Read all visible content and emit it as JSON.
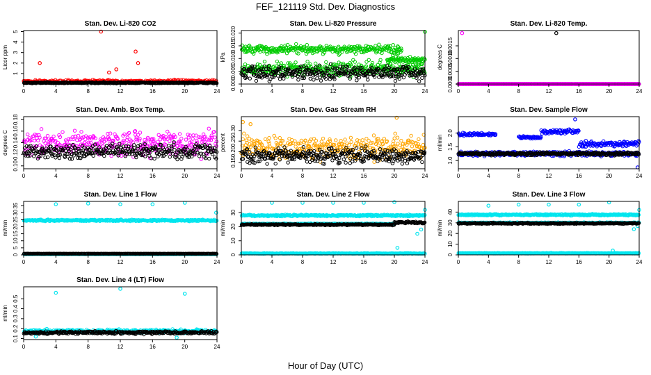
{
  "figure": {
    "title": "FEF_121119  Std. Dev. Diagnostics",
    "xlabel": "Hour of Day (UTC)"
  },
  "chart_data": [
    {
      "type": "scatter",
      "title": "Stan. Dev. Li-820 CO2",
      "ylabel": "Licor ppm",
      "xlim": [
        0,
        24
      ],
      "xticks": [
        0,
        4,
        8,
        12,
        16,
        20,
        24
      ],
      "ylim": [
        0,
        5.1
      ],
      "yticks": [
        1,
        2,
        3,
        4,
        5
      ],
      "ytick_labels": [
        "1",
        "2",
        "3",
        "4",
        "5"
      ],
      "series": [
        {
          "color": "#ff0000",
          "base": 0.25,
          "spread": 0.2,
          "outliers": [
            [
              9.6,
              5.0
            ],
            [
              13.9,
              3.1
            ],
            [
              2.0,
              2.0
            ],
            [
              14.2,
              2.0
            ],
            [
              10.6,
              1.1
            ],
            [
              11.5,
              1.4
            ]
          ]
        },
        {
          "color": "#000000",
          "base": 0.12,
          "spread": 0.08,
          "outliers": []
        }
      ]
    },
    {
      "type": "scatter",
      "title": "Stan. Dev. Li-820 Pressure",
      "ylabel": "kPa",
      "xlim": [
        0,
        24
      ],
      "xticks": [
        0,
        4,
        8,
        12,
        16,
        20,
        24
      ],
      "ylim": [
        0,
        0.021
      ],
      "yticks": [
        0,
        0.005,
        0.01,
        0.015,
        0.02
      ],
      "ytick_labels": [
        "0.000",
        "0.005",
        "0.010",
        "0.015",
        "0.020"
      ],
      "series": [
        {
          "color": "#00cc00",
          "bands": [
            [
              0.0135,
              0.0025,
              0,
              21
            ],
            [
              0.006,
              0.004,
              0,
              24
            ],
            [
              0.0095,
              0.0015,
              19,
              24
            ]
          ],
          "outliers": [
            [
              24.0,
              0.0205
            ],
            [
              16.4,
              0.013
            ],
            [
              19.2,
              0.015
            ],
            [
              20.5,
              0.012
            ]
          ]
        },
        {
          "color": "#000000",
          "bands": [
            [
              0.0045,
              0.004,
              0,
              24
            ]
          ],
          "outliers": []
        }
      ]
    },
    {
      "type": "scatter",
      "title": "Stan. Dev. Li-820 Temp.",
      "ylabel": "degrees C",
      "xlim": [
        0,
        24
      ],
      "xticks": [
        0,
        4,
        8,
        12,
        16,
        20,
        24
      ],
      "ylim": [
        0,
        0.0021
      ],
      "yticks": [
        0,
        0.0005,
        0.001,
        0.0015
      ],
      "ytick_labels": [
        "0.0000",
        "0.0005",
        "0.0010",
        "0.0015"
      ],
      "series": [
        {
          "color": "#000000",
          "base": 0.0,
          "spread": 0.0,
          "outliers": [
            [
              13.0,
              0.002
            ]
          ]
        },
        {
          "color": "#ff00ff",
          "base": 0.0,
          "spread": 0.0,
          "outliers": [
            [
              0.5,
              0.002
            ]
          ]
        }
      ]
    },
    {
      "type": "scatter",
      "title": "Stan. Dev. Amb. Box Temp.",
      "ylabel": "degrees C",
      "xlim": [
        0,
        24
      ],
      "xticks": [
        0,
        4,
        8,
        12,
        16,
        20,
        24
      ],
      "ylim": [
        0.095,
        0.185
      ],
      "yticks": [
        0.1,
        0.12,
        0.14,
        0.16,
        0.18
      ],
      "ytick_labels": [
        "0.10",
        "0.12",
        "0.14",
        "0.16",
        "0.18"
      ],
      "series": [
        {
          "color": "#ff00ff",
          "base": 0.14,
          "spread": 0.03,
          "outliers": []
        },
        {
          "color": "#000000",
          "base": 0.125,
          "spread": 0.018,
          "outliers": []
        }
      ]
    },
    {
      "type": "scatter",
      "title": "Stan. Dev. Gas Stream RH",
      "ylabel": "percent",
      "xlim": [
        0,
        24
      ],
      "xticks": [
        0,
        4,
        8,
        12,
        16,
        20,
        24
      ],
      "ylim": [
        0.12,
        0.365
      ],
      "yticks": [
        0.15,
        0.2,
        0.25,
        0.3
      ],
      "ytick_labels": [
        "0.15",
        "0.20",
        "0.25",
        "0.30"
      ],
      "series": [
        {
          "color": "#ffa500",
          "base": 0.22,
          "spread": 0.08,
          "outliers": [
            [
              20.3,
              0.36
            ],
            [
              0.2,
              0.34
            ],
            [
              1.2,
              0.33
            ]
          ]
        },
        {
          "color": "#000000",
          "base": 0.18,
          "spread": 0.05,
          "outliers": []
        }
      ]
    },
    {
      "type": "scatter",
      "title": "Stan. Dev. Sample Flow",
      "ylabel": "ml/min",
      "xlim": [
        0,
        24
      ],
      "xticks": [
        0,
        4,
        8,
        12,
        16,
        20,
        24
      ],
      "ylim": [
        0.7,
        2.6
      ],
      "yticks": [
        1.0,
        1.5,
        2.0
      ],
      "ytick_labels": [
        "1.0",
        "1.5",
        "2.0"
      ],
      "series": [
        {
          "color": "#0000ff",
          "bands": [
            [
              1.25,
              0.12,
              0,
              24
            ],
            [
              1.95,
              0.08,
              0,
              5
            ],
            [
              1.85,
              0.06,
              8,
              11
            ],
            [
              2.05,
              0.12,
              11,
              16
            ],
            [
              1.6,
              0.15,
              16,
              24
            ]
          ],
          "outliers": [
            [
              23.8,
              0.75
            ],
            [
              15.5,
              2.5
            ]
          ]
        },
        {
          "color": "#000000",
          "bands": [
            [
              1.25,
              0.08,
              0,
              24
            ]
          ],
          "outliers": []
        }
      ]
    },
    {
      "type": "scatter",
      "title": "Stan. Dev. Line 1 Flow",
      "ylabel": "ml/min",
      "xlim": [
        0,
        24
      ],
      "xticks": [
        0,
        4,
        8,
        12,
        16,
        20,
        24
      ],
      "ylim": [
        0,
        38
      ],
      "yticks": [
        0,
        5,
        10,
        15,
        20,
        25,
        30,
        35
      ],
      "ytick_labels": [
        "0",
        "5",
        "10",
        "15",
        "20",
        "25",
        "30",
        "35"
      ],
      "series": [
        {
          "color": "#00e5ee",
          "bands": [
            [
              24.5,
              0.8,
              0,
              24
            ],
            [
              0.5,
              0.1,
              0,
              24
            ]
          ],
          "outliers": [
            [
              4.0,
              36.0
            ],
            [
              8.0,
              36.5
            ],
            [
              12.0,
              36.0
            ],
            [
              16.0,
              36.0
            ],
            [
              20.0,
              37.0
            ],
            [
              23.9,
              30.0
            ]
          ]
        },
        {
          "color": "#000000",
          "bands": [
            [
              0.8,
              0.1,
              0,
              24
            ]
          ],
          "outliers": []
        }
      ]
    },
    {
      "type": "scatter",
      "title": "Stan. Dev. Line 2 Flow",
      "ylabel": "ml/min",
      "xlim": [
        0,
        24
      ],
      "xticks": [
        0,
        4,
        8,
        12,
        16,
        20,
        24
      ],
      "ylim": [
        0,
        38
      ],
      "yticks": [
        0,
        10,
        20,
        30
      ],
      "ytick_labels": [
        "0",
        "10",
        "20",
        "30"
      ],
      "series": [
        {
          "color": "#00e5ee",
          "bands": [
            [
              28.0,
              0.8,
              0,
              24
            ],
            [
              22.0,
              0.5,
              0,
              20
            ],
            [
              1.0,
              0.3,
              0,
              24
            ]
          ],
          "outliers": [
            [
              4.0,
              37.0
            ],
            [
              8.0,
              37.0
            ],
            [
              12.0,
              37.0
            ],
            [
              16.0,
              37.0
            ],
            [
              20.0,
              37.5
            ],
            [
              24.0,
              32.0
            ],
            [
              20.4,
              5.0
            ],
            [
              23.0,
              15.0
            ],
            [
              23.5,
              18.0
            ]
          ]
        },
        {
          "color": "#000000",
          "bands": [
            [
              21.5,
              0.6,
              0,
              20
            ],
            [
              23.0,
              1.0,
              20,
              24
            ]
          ],
          "outliers": []
        }
      ]
    },
    {
      "type": "scatter",
      "title": "Stan. Dev. Line 3 Flow",
      "ylabel": "ml/min",
      "xlim": [
        0,
        24
      ],
      "xticks": [
        0,
        4,
        8,
        12,
        16,
        20,
        24
      ],
      "ylim": [
        0,
        50
      ],
      "yticks": [
        0,
        10,
        20,
        30,
        40
      ],
      "ytick_labels": [
        "0",
        "10",
        "20",
        "30",
        "40"
      ],
      "series": [
        {
          "color": "#00e5ee",
          "bands": [
            [
              37.5,
              1.0,
              0,
              24
            ],
            [
              30.0,
              0.6,
              0,
              24
            ],
            [
              1.5,
              0.4,
              0,
              24
            ]
          ],
          "outliers": [
            [
              4.0,
              46.0
            ],
            [
              8.0,
              47.0
            ],
            [
              12.0,
              47.0
            ],
            [
              16.0,
              47.0
            ],
            [
              20.0,
              49.0
            ],
            [
              24.0,
              42.0
            ],
            [
              20.5,
              4.0
            ],
            [
              23.3,
              24.0
            ],
            [
              23.8,
              27.0
            ]
          ]
        },
        {
          "color": "#000000",
          "bands": [
            [
              29.5,
              0.8,
              0,
              24
            ]
          ],
          "outliers": []
        }
      ]
    },
    {
      "type": "scatter",
      "title": "Stan. Dev. Line 4 (LT) Flow",
      "ylabel": "ml/min",
      "xlim": [
        0,
        24
      ],
      "xticks": [
        0,
        4,
        8,
        12,
        16,
        20,
        24
      ],
      "ylim": [
        0.09,
        0.62
      ],
      "yticks": [
        0.1,
        0.2,
        0.3,
        0.4,
        0.5
      ],
      "ytick_labels": [
        "0.1",
        "0.2",
        "0.3",
        "0.4",
        "0.5"
      ],
      "series": [
        {
          "color": "#00e5ee",
          "bands": [
            [
              0.175,
              0.025,
              0,
              24
            ]
          ],
          "outliers": [
            [
              4.0,
              0.56
            ],
            [
              12.0,
              0.6
            ],
            [
              20.0,
              0.55
            ],
            [
              1.5,
              0.12
            ],
            [
              19.0,
              0.11
            ]
          ]
        },
        {
          "color": "#000000",
          "bands": [
            [
              0.16,
              0.02,
              0,
              24
            ]
          ],
          "outliers": []
        }
      ]
    }
  ]
}
